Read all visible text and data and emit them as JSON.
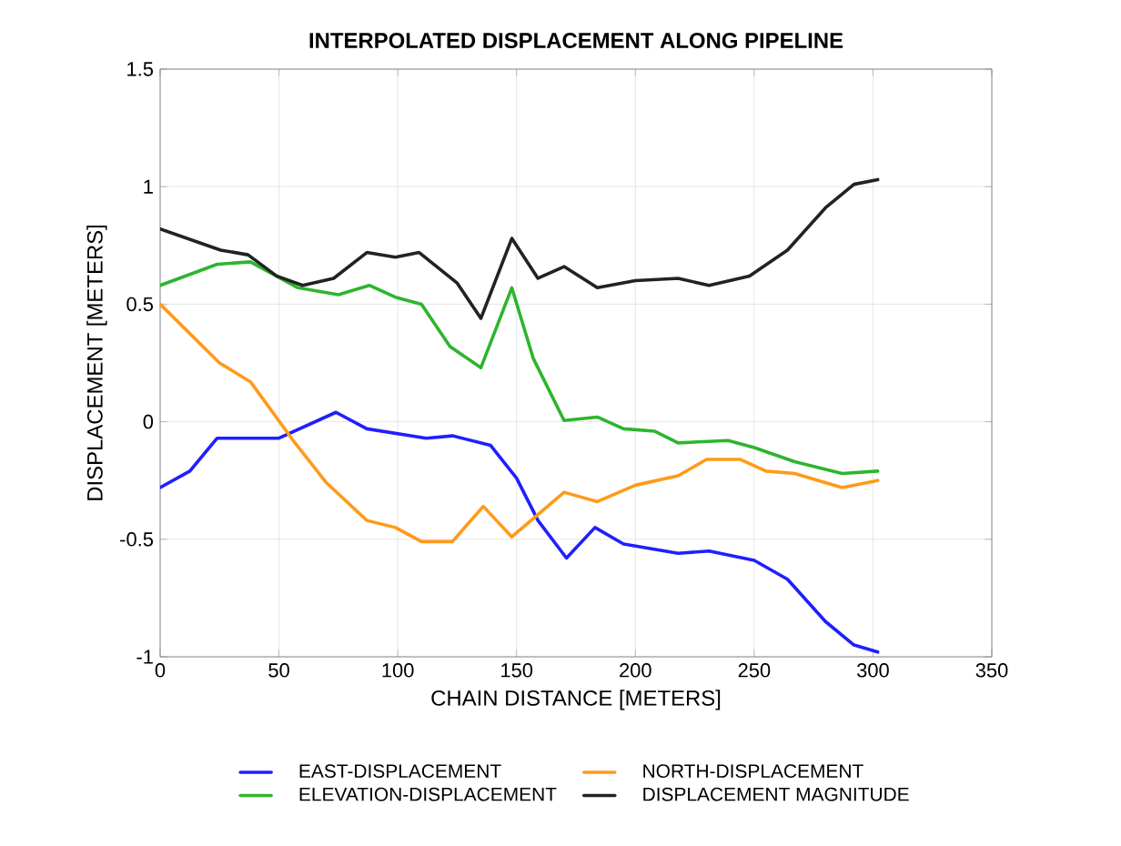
{
  "chart_data": {
    "type": "line",
    "title": "INTERPOLATED DISPLACEMENT ALONG PIPELINE",
    "xlabel": "CHAIN DISTANCE [METERS]",
    "ylabel": "DISPLACEMENT [METERS]",
    "xlim": [
      0,
      350
    ],
    "ylim": [
      -1,
      1.5
    ],
    "xticks": [
      0,
      50,
      100,
      150,
      200,
      250,
      300,
      350
    ],
    "yticks": [
      -1,
      -0.5,
      0,
      0.5,
      1,
      1.5
    ],
    "grid": true,
    "legend": "bottom",
    "line_style": "solid",
    "series": [
      {
        "name": "EAST-DISPLACEMENT",
        "color": "#1f1fff",
        "x": [
          0,
          12.5,
          24,
          50,
          74,
          87,
          112,
          123,
          139,
          150,
          159,
          171,
          183,
          195,
          218,
          231,
          250,
          264,
          280,
          292,
          302
        ],
        "values": [
          -0.28,
          -0.21,
          -0.07,
          -0.07,
          0.04,
          -0.03,
          -0.07,
          -0.06,
          -0.1,
          -0.24,
          -0.42,
          -0.58,
          -0.45,
          -0.52,
          -0.56,
          -0.55,
          -0.59,
          -0.67,
          -0.85,
          -0.95,
          -0.98
        ]
      },
      {
        "name": "NORTH-DISPLACEMENT",
        "color": "#ff9a1a",
        "x": [
          0,
          25,
          38,
          56,
          70,
          87,
          99,
          110,
          123,
          136,
          148,
          170,
          184,
          200,
          218,
          230,
          244,
          255,
          267,
          287,
          302
        ],
        "values": [
          0.5,
          0.25,
          0.17,
          -0.08,
          -0.26,
          -0.42,
          -0.45,
          -0.51,
          -0.51,
          -0.36,
          -0.49,
          -0.3,
          -0.34,
          -0.27,
          -0.23,
          -0.16,
          -0.16,
          -0.21,
          -0.22,
          -0.28,
          -0.25
        ]
      },
      {
        "name": "ELEVATION-DISPLACEMENT",
        "color": "#2db52d",
        "x": [
          0,
          24,
          38,
          58,
          75,
          88,
          99,
          110,
          122,
          135,
          148,
          157,
          170,
          184,
          195,
          208,
          218,
          239,
          250,
          267,
          287,
          302
        ],
        "values": [
          0.58,
          0.67,
          0.68,
          0.57,
          0.54,
          0.58,
          0.53,
          0.5,
          0.32,
          0.23,
          0.57,
          0.27,
          0.005,
          0.02,
          -0.03,
          -0.04,
          -0.09,
          -0.08,
          -0.11,
          -0.17,
          -0.22,
          -0.21
        ]
      },
      {
        "name": "DISPLACEMENT MAGNITUDE",
        "color": "#222222",
        "x": [
          0,
          25.5,
          37,
          49,
          60,
          73,
          87,
          99,
          109,
          125,
          135,
          148,
          159,
          170,
          184,
          200,
          218,
          231,
          248,
          264,
          280,
          292,
          302
        ],
        "values": [
          0.82,
          0.73,
          0.71,
          0.62,
          0.58,
          0.61,
          0.72,
          0.7,
          0.72,
          0.59,
          0.44,
          0.78,
          0.61,
          0.66,
          0.57,
          0.6,
          0.61,
          0.58,
          0.62,
          0.73,
          0.91,
          1.01,
          1.03
        ]
      }
    ]
  }
}
